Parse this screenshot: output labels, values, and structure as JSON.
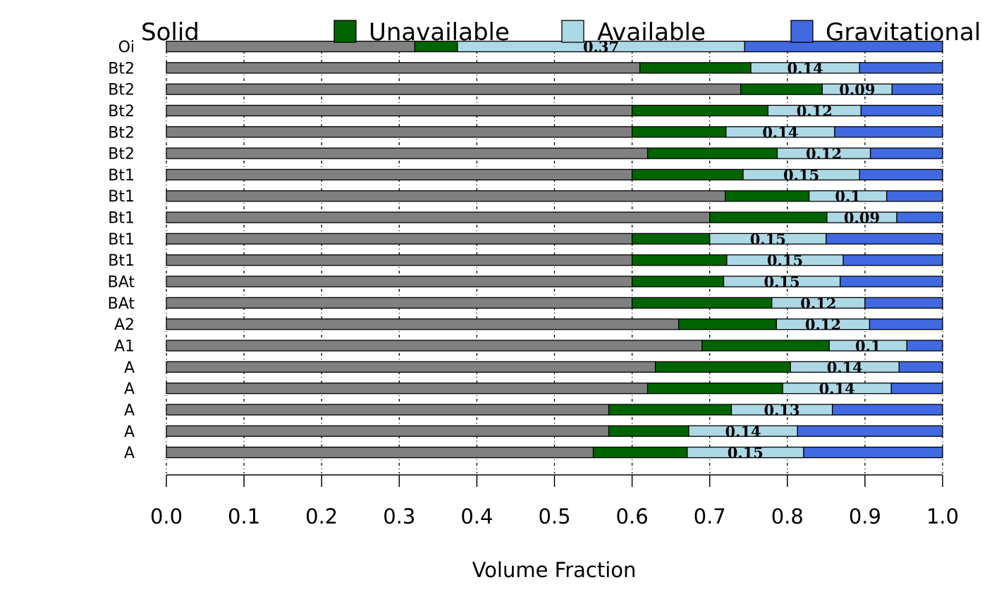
{
  "chart_data": {
    "type": "bar",
    "orientation": "horizontal",
    "stacked": true,
    "xlabel": "Volume Fraction",
    "xlim": [
      0,
      1
    ],
    "x_ticks": [
      "0.0",
      "0.1",
      "0.2",
      "0.3",
      "0.4",
      "0.5",
      "0.6",
      "0.7",
      "0.8",
      "0.9",
      "1.0"
    ],
    "grid": "vertical dotted lines at x ticks",
    "legend_position": "top, single row",
    "series": [
      {
        "name": "Solid",
        "color": "#808080"
      },
      {
        "name": "Unavailable",
        "color": "#006400"
      },
      {
        "name": "Available",
        "color": "#ADD8E6"
      },
      {
        "name": "Gravitational",
        "color": "#4169E1"
      }
    ],
    "rows": [
      {
        "label": "Oi",
        "solid": 0.32,
        "unavailable": 0.055,
        "available": 0.37,
        "gravitational": 0.255,
        "value_label": "0.37"
      },
      {
        "label": "Bt2",
        "solid": 0.61,
        "unavailable": 0.143,
        "available": 0.14,
        "gravitational": 0.107,
        "value_label": "0.14"
      },
      {
        "label": "Bt2",
        "solid": 0.74,
        "unavailable": 0.105,
        "available": 0.09,
        "gravitational": 0.065,
        "value_label": "0.09"
      },
      {
        "label": "Bt2",
        "solid": 0.6,
        "unavailable": 0.175,
        "available": 0.12,
        "gravitational": 0.105,
        "value_label": "0.12"
      },
      {
        "label": "Bt2",
        "solid": 0.6,
        "unavailable": 0.121,
        "available": 0.14,
        "gravitational": 0.139,
        "value_label": "0.14"
      },
      {
        "label": "Bt2",
        "solid": 0.62,
        "unavailable": 0.167,
        "available": 0.12,
        "gravitational": 0.093,
        "value_label": "0.12"
      },
      {
        "label": "Bt1",
        "solid": 0.6,
        "unavailable": 0.143,
        "available": 0.15,
        "gravitational": 0.107,
        "value_label": "0.15"
      },
      {
        "label": "Bt1",
        "solid": 0.72,
        "unavailable": 0.108,
        "available": 0.1,
        "gravitational": 0.072,
        "value_label": "0.1"
      },
      {
        "label": "Bt1",
        "solid": 0.7,
        "unavailable": 0.151,
        "available": 0.09,
        "gravitational": 0.059,
        "value_label": "0.09"
      },
      {
        "label": "Bt1",
        "solid": 0.6,
        "unavailable": 0.1,
        "available": 0.15,
        "gravitational": 0.15,
        "value_label": "0.15"
      },
      {
        "label": "Bt1",
        "solid": 0.6,
        "unavailable": 0.122,
        "available": 0.15,
        "gravitational": 0.128,
        "value_label": "0.15"
      },
      {
        "label": "BAt",
        "solid": 0.6,
        "unavailable": 0.118,
        "available": 0.15,
        "gravitational": 0.132,
        "value_label": "0.15"
      },
      {
        "label": "BAt",
        "solid": 0.6,
        "unavailable": 0.18,
        "available": 0.12,
        "gravitational": 0.1,
        "value_label": "0.12"
      },
      {
        "label": "A2",
        "solid": 0.66,
        "unavailable": 0.126,
        "available": 0.12,
        "gravitational": 0.094,
        "value_label": "0.12"
      },
      {
        "label": "A1",
        "solid": 0.69,
        "unavailable": 0.164,
        "available": 0.1,
        "gravitational": 0.046,
        "value_label": "0.1"
      },
      {
        "label": "A",
        "solid": 0.63,
        "unavailable": 0.174,
        "available": 0.14,
        "gravitational": 0.056,
        "value_label": "0.14"
      },
      {
        "label": "A",
        "solid": 0.62,
        "unavailable": 0.174,
        "available": 0.14,
        "gravitational": 0.066,
        "value_label": "0.14"
      },
      {
        "label": "A",
        "solid": 0.57,
        "unavailable": 0.158,
        "available": 0.13,
        "gravitational": 0.142,
        "value_label": "0.13"
      },
      {
        "label": "A",
        "solid": 0.57,
        "unavailable": 0.103,
        "available": 0.14,
        "gravitational": 0.187,
        "value_label": "0.14"
      },
      {
        "label": "A",
        "solid": 0.55,
        "unavailable": 0.121,
        "available": 0.15,
        "gravitational": 0.179,
        "value_label": "0.15"
      }
    ]
  }
}
